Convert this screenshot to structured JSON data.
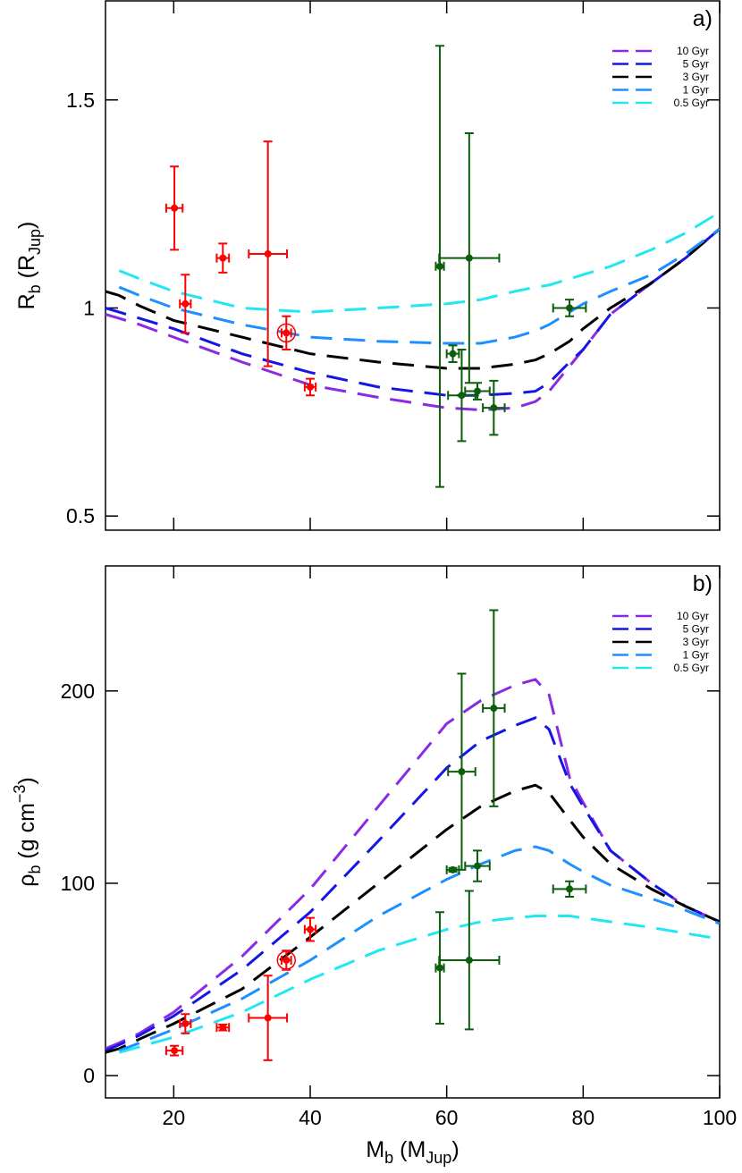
{
  "chart_data": [
    {
      "type": "line",
      "panel_label": "a)",
      "ylabel": [
        {
          "text": "R"
        },
        {
          "text": "b",
          "sub": true
        },
        {
          "text": " (R"
        },
        {
          "text": "Jup",
          "sub": true
        },
        {
          "text": ")"
        }
      ],
      "xlim": [
        10,
        100
      ],
      "xticks": [
        20,
        40,
        60,
        80,
        100
      ],
      "show_xtick_labels": false,
      "ylim": [
        0.466,
        1.738
      ],
      "yticks": [
        0.5,
        1,
        1.5
      ],
      "legend": "upper right",
      "x": [
        10,
        12,
        15,
        20,
        30,
        40,
        50,
        60,
        65,
        70,
        73,
        75,
        78,
        80,
        84,
        90,
        95,
        100
      ],
      "series": [
        {
          "name": "10 Gyr",
          "color": "#8a2be2",
          "values": [
            0.985,
            0.975,
            0.96,
            0.93,
            0.87,
            0.815,
            0.785,
            0.76,
            0.755,
            0.76,
            0.775,
            0.8,
            0.86,
            0.9,
            0.985,
            1.06,
            1.12,
            1.19
          ]
        },
        {
          "name": "5 Gyr",
          "color": "#1515e6",
          "values": [
            1.0,
            0.99,
            0.975,
            0.95,
            0.89,
            0.845,
            0.81,
            0.79,
            0.79,
            0.795,
            0.8,
            0.82,
            0.87,
            0.9,
            0.985,
            1.06,
            1.12,
            1.19
          ]
        },
        {
          "name": "3 Gyr",
          "color": "#000000",
          "values": [
            1.04,
            1.03,
            1.005,
            0.97,
            0.93,
            0.89,
            0.87,
            0.855,
            0.855,
            0.865,
            0.875,
            0.89,
            0.92,
            0.95,
            1.0,
            1.06,
            1.12,
            1.19
          ]
        },
        {
          "name": "1 Gyr",
          "color": "#1e8fff",
          "values": [
            null,
            1.05,
            1.03,
            1.0,
            0.96,
            0.93,
            0.92,
            0.915,
            0.915,
            0.93,
            0.945,
            0.96,
            0.99,
            1.01,
            1.04,
            1.08,
            1.13,
            1.19
          ]
        },
        {
          "name": "0.5 Gyr",
          "color": "#22e6f2",
          "values": [
            null,
            1.09,
            1.07,
            1.04,
            1.0,
            0.99,
            1.0,
            1.01,
            1.02,
            1.04,
            1.05,
            1.055,
            1.07,
            1.08,
            1.1,
            1.14,
            1.18,
            1.23
          ]
        }
      ],
      "point_groups": [
        {
          "color": "#ff0000",
          "x": [
            20.1,
            21.7,
            27.2,
            33.8,
            36.5,
            40.0
          ],
          "xerr": [
            1.2,
            0.8,
            0.9,
            2.8,
            0.7,
            0.8
          ],
          "values": [
            1.24,
            1.01,
            1.12,
            1.13,
            0.94,
            0.81
          ],
          "yerr": [
            0.1,
            0.07,
            0.035,
            0.27,
            0.04,
            0.02
          ],
          "circled": [
            false,
            false,
            false,
            false,
            true,
            false
          ]
        },
        {
          "color": "#0b5e0b",
          "x": [
            59.0,
            60.9,
            62.2,
            63.3,
            64.5,
            66.9,
            78.0
          ],
          "xerr": [
            0.6,
            0.9,
            2.0,
            4.4,
            1.8,
            1.6,
            2.4
          ],
          "values": [
            1.1,
            0.89,
            0.79,
            1.12,
            0.8,
            0.76,
            1.0
          ],
          "yerr": [
            0.53,
            0.02,
            0.11,
            0.3,
            0.02,
            0.065,
            0.02
          ],
          "circled": [
            false,
            false,
            false,
            false,
            false,
            false,
            false
          ]
        }
      ]
    },
    {
      "type": "line",
      "panel_label": "b)",
      "ylabel": [
        {
          "text": "ρ"
        },
        {
          "text": "b",
          "sub": true
        },
        {
          "text": " (g cm"
        },
        {
          "text": "−3",
          "sup": true
        },
        {
          "text": ")"
        }
      ],
      "xlabel": [
        {
          "text": "M"
        },
        {
          "text": "b",
          "sub": true
        },
        {
          "text": " (M"
        },
        {
          "text": "Jup",
          "sub": true
        },
        {
          "text": ")"
        }
      ],
      "xlim": [
        10,
        100
      ],
      "xticks": [
        20,
        40,
        60,
        80,
        100
      ],
      "show_xtick_labels": true,
      "ylim": [
        -11.6,
        265
      ],
      "yticks": [
        0,
        100,
        200
      ],
      "legend": "upper right",
      "x": [
        10,
        12,
        15,
        20,
        30,
        40,
        50,
        60,
        65,
        70,
        73,
        75,
        78,
        80,
        84,
        90,
        95,
        100
      ],
      "series": [
        {
          "name": "10 Gyr",
          "color": "#8a2be2",
          "values": [
            14,
            17,
            22,
            33,
            62,
            97,
            140,
            183,
            195,
            203,
            206,
            198,
            155,
            142,
            117,
            100,
            88,
            80
          ]
        },
        {
          "name": "5 Gyr",
          "color": "#1515e6",
          "values": [
            13,
            16,
            21,
            31,
            55,
            85,
            122,
            160,
            174,
            182,
            186,
            180,
            152,
            140,
            117,
            100,
            88,
            80
          ]
        },
        {
          "name": "3 Gyr",
          "color": "#000000",
          "values": [
            12,
            14,
            19,
            27,
            45,
            72,
            100,
            128,
            140,
            148,
            151,
            147,
            133,
            124,
            110,
            97,
            88,
            80
          ]
        },
        {
          "name": "1 Gyr",
          "color": "#1e8fff",
          "values": [
            null,
            13,
            17,
            24,
            40,
            60,
            83,
            102,
            110,
            117,
            119,
            117,
            110,
            106,
            99,
            92,
            86,
            79
          ]
        },
        {
          "name": "0.5 Gyr",
          "color": "#22e6f2",
          "values": [
            null,
            12,
            15,
            20,
            33,
            50,
            65,
            76,
            80,
            82,
            83,
            83,
            83,
            82,
            80,
            77,
            74,
            71
          ]
        }
      ],
      "point_groups": [
        {
          "color": "#ff0000",
          "x": [
            20.1,
            21.7,
            27.2,
            33.8,
            36.5,
            40.0
          ],
          "xerr": [
            1.2,
            0.8,
            0.9,
            2.8,
            0.7,
            0.8
          ],
          "values": [
            13,
            27,
            25,
            30,
            60,
            76
          ],
          "yerr": [
            2.5,
            5,
            1.5,
            22,
            5,
            6
          ],
          "circled": [
            false,
            false,
            false,
            false,
            true,
            false
          ]
        },
        {
          "color": "#0b5e0b",
          "x": [
            59.0,
            60.9,
            62.2,
            63.3,
            64.5,
            66.9,
            78.0
          ],
          "xerr": [
            0.6,
            0.9,
            2.0,
            4.4,
            1.8,
            1.6,
            2.4
          ],
          "values": [
            56,
            107,
            158,
            60,
            109,
            191,
            97
          ],
          "yerr": [
            29,
            1,
            51,
            36,
            8,
            51,
            4
          ],
          "circled": [
            false,
            false,
            false,
            false,
            false,
            false,
            false
          ]
        }
      ]
    }
  ]
}
